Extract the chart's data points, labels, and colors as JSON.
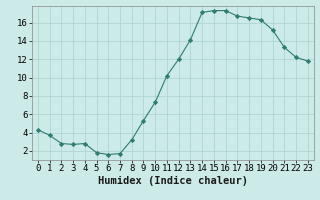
{
  "x": [
    0,
    1,
    2,
    3,
    4,
    5,
    6,
    7,
    8,
    9,
    10,
    11,
    12,
    13,
    14,
    15,
    16,
    17,
    18,
    19,
    20,
    21,
    22,
    23
  ],
  "y": [
    4.3,
    3.7,
    2.8,
    2.7,
    2.8,
    1.8,
    1.6,
    1.7,
    3.2,
    5.3,
    7.3,
    10.2,
    12.0,
    14.1,
    17.1,
    17.3,
    17.3,
    16.7,
    16.5,
    16.3,
    15.2,
    13.3,
    12.2,
    11.8
  ],
  "line_color": "#2e7d6e",
  "marker": "D",
  "marker_size": 2.2,
  "bg_color": "#cceae7",
  "grid_color": "#b0d5d0",
  "xlabel": "Humidex (Indice chaleur)",
  "xlabel_fontsize": 7.5,
  "tick_fontsize": 6.5,
  "ylim": [
    1.0,
    17.8
  ],
  "yticks": [
    2,
    4,
    6,
    8,
    10,
    12,
    14,
    16
  ],
  "xlim": [
    -0.5,
    23.5
  ],
  "xticks": [
    0,
    1,
    2,
    3,
    4,
    5,
    6,
    7,
    8,
    9,
    10,
    11,
    12,
    13,
    14,
    15,
    16,
    17,
    18,
    19,
    20,
    21,
    22,
    23
  ],
  "spine_color": "#888888"
}
